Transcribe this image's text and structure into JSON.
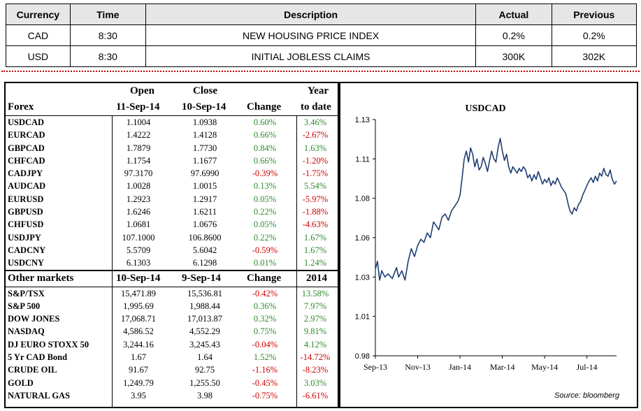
{
  "calendar": {
    "headers": [
      "Currency",
      "Time",
      "Description",
      "Actual",
      "Previous"
    ],
    "rows": [
      {
        "currency": "CAD",
        "time": "8:30",
        "description": "NEW HOUSING PRICE INDEX",
        "actual": "0.2%",
        "previous": "0.2%"
      },
      {
        "currency": "USD",
        "time": "8:30",
        "description": "INITIAL JOBLESS CLAIMS",
        "actual": "300K",
        "previous": "302K"
      }
    ]
  },
  "forex": {
    "headers": {
      "name": "Forex",
      "open_line1": "Open",
      "open_line2": "11-Sep-14",
      "close_line1": "Close",
      "close_line2": "10-Sep-14",
      "change": "Change",
      "ytd_line1": "Year",
      "ytd_line2": "to date"
    },
    "rows": [
      {
        "name": "USDCAD",
        "open": "1.1004",
        "close": "1.0938",
        "change": "0.60%",
        "ytd": "3.46%"
      },
      {
        "name": "EURCAD",
        "open": "1.4222",
        "close": "1.4128",
        "change": "0.66%",
        "ytd": "-2.67%"
      },
      {
        "name": "GBPCAD",
        "open": "1.7879",
        "close": "1.7730",
        "change": "0.84%",
        "ytd": "1.63%"
      },
      {
        "name": "CHFCAD",
        "open": "1.1754",
        "close": "1.1677",
        "change": "0.66%",
        "ytd": "-1.20%"
      },
      {
        "name": "CADJPY",
        "open": "97.3170",
        "close": "97.6990",
        "change": "-0.39%",
        "ytd": "-1.75%"
      },
      {
        "name": "AUDCAD",
        "open": "1.0028",
        "close": "1.0015",
        "change": "0.13%",
        "ytd": "5.54%"
      },
      {
        "name": "EURUSD",
        "open": "1.2923",
        "close": "1.2917",
        "change": "0.05%",
        "ytd": "-5.97%"
      },
      {
        "name": "GBPUSD",
        "open": "1.6246",
        "close": "1.6211",
        "change": "0.22%",
        "ytd": "-1.88%"
      },
      {
        "name": "CHFUSD",
        "open": "1.0681",
        "close": "1.0676",
        "change": "0.05%",
        "ytd": "-4.63%"
      },
      {
        "name": "USDJPY",
        "open": "107.1000",
        "close": "106.8600",
        "change": "0.22%",
        "ytd": "1.67%"
      },
      {
        "name": "CADCNY",
        "open": "5.5709",
        "close": "5.6042",
        "change": "-0.59%",
        "ytd": "1.67%"
      },
      {
        "name": "USDCNY",
        "open": "6.1303",
        "close": "6.1298",
        "change": "0.01%",
        "ytd": "1.24%"
      }
    ]
  },
  "other_markets": {
    "headers": {
      "name": "Other markets",
      "col1": "10-Sep-14",
      "col2": "9-Sep-14",
      "change": "Change",
      "ytd": "2014"
    },
    "rows": [
      {
        "name": "S&P/TSX",
        "v1": "15,471.89",
        "v2": "15,536.81",
        "change": "-0.42%",
        "ytd": "13.58%"
      },
      {
        "name": "S&P 500",
        "v1": "1,995.69",
        "v2": "1,988.44",
        "change": "0.36%",
        "ytd": "7.97%"
      },
      {
        "name": "DOW JONES",
        "v1": "17,068.71",
        "v2": "17,013.87",
        "change": "0.32%",
        "ytd": "2.97%"
      },
      {
        "name": "NASDAQ",
        "v1": "4,586.52",
        "v2": "4,552.29",
        "change": "0.75%",
        "ytd": "9.81%"
      },
      {
        "name": "DJ EURO STOXX 50",
        "v1": "3,244.16",
        "v2": "3,245.43",
        "change": "-0.04%",
        "ytd": "4.12%"
      },
      {
        "name": "5 Yr CAD Bond",
        "v1": "1.67",
        "v2": "1.64",
        "change": "1.52%",
        "ytd": "-14.72%"
      },
      {
        "name": "CRUDE OIL",
        "v1": "91.67",
        "v2": "92.75",
        "change": "-1.16%",
        "ytd": "-8.23%"
      },
      {
        "name": "GOLD",
        "v1": "1,249.79",
        "v2": "1,255.50",
        "change": "-0.45%",
        "ytd": "3.03%"
      },
      {
        "name": "NATURAL GAS",
        "v1": "3.95",
        "v2": "3.98",
        "change": "-0.75%",
        "ytd": "-6.61%"
      }
    ]
  },
  "colors": {
    "positive": "#2e8b2e",
    "negative": "#d00000",
    "line": "#1f3d73",
    "header_bg": "#e6e6e6",
    "divider": "#c00000"
  },
  "chart_data": {
    "type": "line",
    "title": "USDCAD",
    "source": "Source: bloomberg",
    "ylim": [
      0.98,
      1.13
    ],
    "yticks": [
      "1.13",
      "1.11",
      "1.08",
      "1.06",
      "1.03",
      "1.01",
      "0.98"
    ],
    "ytick_values": [
      1.13,
      1.105,
      1.08,
      1.055,
      1.03,
      1.005,
      0.98
    ],
    "xticks": [
      "Sep-13",
      "Nov-13",
      "Jan-14",
      "Mar-14",
      "May-14",
      "Jul-14"
    ],
    "xtick_months": [
      0,
      2,
      4,
      6,
      8,
      10
    ],
    "grid": false,
    "series": [
      {
        "values": [
          [
            0.0,
            1.035
          ],
          [
            0.1,
            1.04
          ],
          [
            0.2,
            1.028
          ],
          [
            0.3,
            1.034
          ],
          [
            0.45,
            1.03
          ],
          [
            0.6,
            1.032
          ],
          [
            0.8,
            1.029
          ],
          [
            1.0,
            1.036
          ],
          [
            1.1,
            1.03
          ],
          [
            1.25,
            1.034
          ],
          [
            1.4,
            1.028
          ],
          [
            1.55,
            1.04
          ],
          [
            1.7,
            1.048
          ],
          [
            1.85,
            1.043
          ],
          [
            2.0,
            1.05
          ],
          [
            2.15,
            1.054
          ],
          [
            2.3,
            1.052
          ],
          [
            2.45,
            1.058
          ],
          [
            2.6,
            1.055
          ],
          [
            2.75,
            1.065
          ],
          [
            2.9,
            1.062
          ],
          [
            3.0,
            1.06
          ],
          [
            3.15,
            1.068
          ],
          [
            3.3,
            1.07
          ],
          [
            3.45,
            1.066
          ],
          [
            3.6,
            1.072
          ],
          [
            3.75,
            1.075
          ],
          [
            3.9,
            1.078
          ],
          [
            4.0,
            1.082
          ],
          [
            4.1,
            1.093
          ],
          [
            4.2,
            1.105
          ],
          [
            4.3,
            1.11
          ],
          [
            4.4,
            1.103
          ],
          [
            4.5,
            1.112
          ],
          [
            4.6,
            1.108
          ],
          [
            4.7,
            1.1
          ],
          [
            4.8,
            1.105
          ],
          [
            4.9,
            1.098
          ],
          [
            5.0,
            1.1
          ],
          [
            5.1,
            1.106
          ],
          [
            5.2,
            1.102
          ],
          [
            5.3,
            1.097
          ],
          [
            5.4,
            1.104
          ],
          [
            5.5,
            1.11
          ],
          [
            5.6,
            1.105
          ],
          [
            5.7,
            1.103
          ],
          [
            5.8,
            1.112
          ],
          [
            5.9,
            1.118
          ],
          [
            6.0,
            1.11
          ],
          [
            6.1,
            1.104
          ],
          [
            6.2,
            1.108
          ],
          [
            6.3,
            1.1
          ],
          [
            6.4,
            1.096
          ],
          [
            6.5,
            1.1
          ],
          [
            6.6,
            1.098
          ],
          [
            6.7,
            1.096
          ],
          [
            6.8,
            1.099
          ],
          [
            6.9,
            1.097
          ],
          [
            7.0,
            1.1
          ],
          [
            7.1,
            1.098
          ],
          [
            7.2,
            1.093
          ],
          [
            7.3,
            1.095
          ],
          [
            7.4,
            1.091
          ],
          [
            7.5,
            1.095
          ],
          [
            7.6,
            1.092
          ],
          [
            7.7,
            1.097
          ],
          [
            7.8,
            1.093
          ],
          [
            7.9,
            1.089
          ],
          [
            8.0,
            1.092
          ],
          [
            8.1,
            1.09
          ],
          [
            8.2,
            1.093
          ],
          [
            8.3,
            1.088
          ],
          [
            8.4,
            1.091
          ],
          [
            8.5,
            1.089
          ],
          [
            8.6,
            1.093
          ],
          [
            8.7,
            1.09
          ],
          [
            8.8,
            1.087
          ],
          [
            8.9,
            1.085
          ],
          [
            9.0,
            1.083
          ],
          [
            9.1,
            1.077
          ],
          [
            9.2,
            1.072
          ],
          [
            9.3,
            1.07
          ],
          [
            9.4,
            1.074
          ],
          [
            9.5,
            1.072
          ],
          [
            9.6,
            1.076
          ],
          [
            9.7,
            1.078
          ],
          [
            9.8,
            1.082
          ],
          [
            9.9,
            1.085
          ],
          [
            10.0,
            1.088
          ],
          [
            10.1,
            1.091
          ],
          [
            10.2,
            1.093
          ],
          [
            10.3,
            1.09
          ],
          [
            10.4,
            1.094
          ],
          [
            10.5,
            1.091
          ],
          [
            10.6,
            1.096
          ],
          [
            10.7,
            1.094
          ],
          [
            10.8,
            1.099
          ],
          [
            10.9,
            1.095
          ],
          [
            11.0,
            1.094
          ],
          [
            11.1,
            1.098
          ],
          [
            11.2,
            1.092
          ],
          [
            11.3,
            1.089
          ],
          [
            11.4,
            1.091
          ]
        ]
      }
    ]
  }
}
